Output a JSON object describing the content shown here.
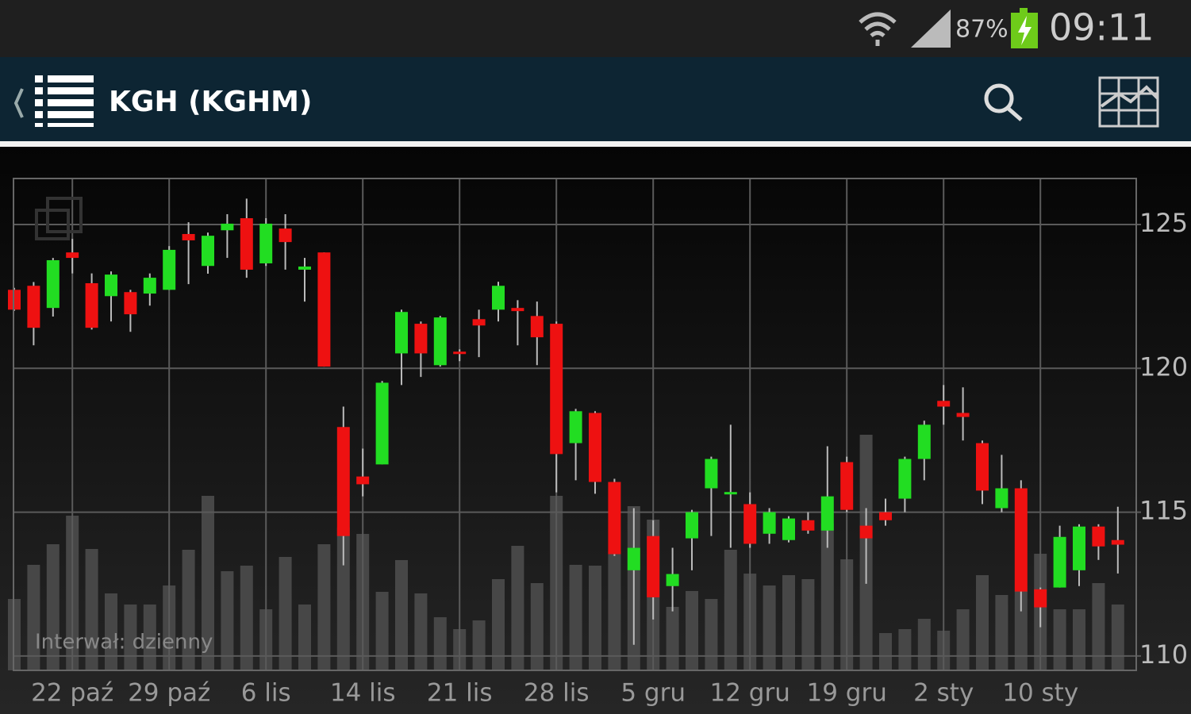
{
  "status_bar": {
    "battery": "87%",
    "time": "09:11"
  },
  "app_bar": {
    "title": "KGH (KGHM)"
  },
  "chart_data": {
    "type": "candlestick",
    "annotation": "Interwał: dzienny",
    "categories": [
      null,
      null,
      null,
      "22 paź",
      null,
      null,
      null,
      null,
      "29 paź",
      null,
      null,
      null,
      null,
      "6 lis",
      null,
      null,
      null,
      null,
      "14 lis",
      null,
      null,
      null,
      null,
      "21 lis",
      null,
      null,
      null,
      null,
      "28 lis",
      null,
      null,
      null,
      null,
      "5 gru",
      null,
      null,
      null,
      null,
      "12 gru",
      null,
      null,
      null,
      null,
      "19 gru",
      null,
      null,
      null,
      null,
      "2 sty",
      null,
      null,
      null,
      null,
      "10 sty",
      null,
      null,
      null,
      null
    ],
    "open": [
      122.73,
      122.87,
      122.1,
      124.03,
      122.96,
      122.51,
      122.65,
      122.6,
      122.73,
      124.67,
      123.56,
      124.8,
      125.22,
      123.65,
      124.86,
      123.43,
      124.03,
      117.96,
      116.24,
      116.66,
      120.52,
      121.55,
      120.11,
      120.58,
      121.71,
      122.04,
      122.1,
      121.82,
      121.55,
      117.4,
      118.45,
      116.05,
      112.98,
      114.17,
      112.43,
      114.09,
      115.83,
      115.7,
      115.28,
      114.25,
      114.03,
      114.72,
      114.36,
      116.74,
      114.53,
      115.0,
      115.47,
      116.85,
      118.87,
      118.45,
      117.4,
      115.14,
      115.83,
      112.32,
      112.38,
      112.98,
      114.5,
      114.03
    ],
    "high": [
      122.8,
      123.0,
      123.84,
      124.5,
      123.3,
      123.37,
      122.73,
      123.3,
      124.25,
      125.08,
      124.72,
      125.36,
      125.9,
      125.22,
      125.36,
      123.84,
      124.03,
      118.67,
      117.21,
      119.56,
      122.04,
      121.63,
      121.82,
      120.66,
      122.04,
      123.01,
      122.37,
      122.32,
      121.63,
      118.59,
      118.51,
      116.16,
      115.14,
      114.72,
      113.76,
      115.08,
      116.93,
      118.04,
      115.69,
      115.14,
      114.86,
      115.0,
      117.29,
      116.93,
      115.14,
      115.47,
      116.93,
      118.18,
      119.42,
      119.34,
      117.49,
      116.99,
      116.11,
      112.38,
      114.53,
      114.58,
      114.58,
      115.19
    ],
    "low": [
      122.0,
      120.8,
      121.8,
      123.3,
      121.35,
      121.63,
      121.27,
      122.18,
      122.73,
      122.93,
      123.29,
      123.84,
      123.15,
      123.56,
      123.43,
      122.32,
      120.06,
      113.15,
      115.55,
      116.66,
      119.42,
      119.7,
      120.06,
      120.25,
      120.39,
      121.63,
      120.8,
      120.11,
      115.69,
      116.11,
      115.64,
      113.48,
      110.39,
      111.27,
      111.55,
      112.98,
      114.17,
      113.76,
      113.76,
      113.9,
      113.95,
      114.25,
      113.76,
      115.0,
      112.51,
      114.53,
      115.0,
      116.11,
      118.04,
      117.49,
      115.28,
      115.0,
      111.55,
      111.0,
      112.38,
      112.43,
      113.34,
      112.87
    ],
    "close": [
      122.04,
      121.41,
      123.76,
      123.84,
      121.41,
      123.26,
      121.88,
      123.15,
      124.12,
      124.45,
      124.61,
      125.03,
      123.43,
      125.03,
      124.39,
      123.54,
      120.06,
      114.17,
      115.97,
      119.5,
      121.96,
      120.52,
      121.77,
      120.5,
      121.49,
      122.87,
      121.99,
      121.08,
      117.02,
      118.51,
      116.05,
      113.54,
      113.76,
      112.04,
      112.85,
      115.0,
      116.85,
      115.7,
      113.9,
      115.0,
      114.78,
      114.36,
      115.55,
      115.08,
      114.09,
      114.72,
      116.85,
      118.04,
      118.67,
      118.31,
      115.75,
      115.83,
      112.24,
      111.69,
      114.14,
      114.5,
      113.81,
      113.87
    ],
    "volume": [
      90,
      133,
      159,
      195,
      153,
      97,
      83,
      83,
      107,
      152,
      220,
      125,
      132,
      77,
      143,
      83,
      159,
      180,
      172,
      99,
      139,
      97,
      67,
      52,
      63,
      115,
      157,
      110,
      220,
      133,
      132,
      150,
      207,
      190,
      80,
      100,
      90,
      152,
      122,
      107,
      120,
      115,
      185,
      140,
      297,
      47,
      52,
      65,
      50,
      77,
      120,
      95,
      100,
      147,
      77,
      77,
      110,
      83
    ],
    "up_color": "#22dd22",
    "down_color": "#ee1111",
    "volume_color": "#474747",
    "ylim": [
      109.5,
      126.6
    ],
    "yticks": [
      110,
      115,
      120,
      125
    ],
    "grid": true
  }
}
